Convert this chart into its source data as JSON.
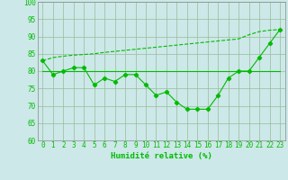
{
  "x": [
    0,
    1,
    2,
    3,
    4,
    5,
    6,
    7,
    8,
    9,
    10,
    11,
    12,
    13,
    14,
    15,
    16,
    17,
    18,
    19,
    20,
    21,
    22,
    23
  ],
  "line_main": [
    83,
    79,
    80,
    81,
    81,
    76,
    78,
    77,
    79,
    79,
    76,
    73,
    74,
    71,
    69,
    69,
    69,
    73,
    78,
    80,
    80,
    84,
    88,
    92
  ],
  "line_flat_x": [
    0,
    1,
    2,
    3,
    4,
    5,
    6,
    7,
    8,
    9,
    10,
    11,
    12,
    13,
    14,
    15,
    16,
    17,
    18,
    19,
    20,
    21,
    22,
    23
  ],
  "line_flat_y": [
    80,
    80,
    80,
    80,
    80,
    80,
    80,
    80,
    80,
    80,
    80,
    80,
    80,
    80,
    80,
    80,
    80,
    80,
    80,
    80,
    80,
    80,
    80,
    80
  ],
  "line_diag_x": [
    0,
    1,
    2,
    3,
    4,
    5,
    6,
    7,
    8,
    9,
    10,
    11,
    12,
    13,
    14,
    15,
    16,
    17,
    18,
    19,
    20,
    21,
    22,
    23
  ],
  "line_diag_y": [
    83,
    83.9,
    84.3,
    84.6,
    84.8,
    85.0,
    85.4,
    85.7,
    86.0,
    86.3,
    86.6,
    86.9,
    87.2,
    87.5,
    87.8,
    88.1,
    88.4,
    88.7,
    89.0,
    89.3,
    90.5,
    91.4,
    91.8,
    92
  ],
  "line_color": "#00bb00",
  "bg_color": "#cce8e8",
  "grid_color": "#99bb99",
  "xlabel": "Humidité relative (%)",
  "ylim": [
    60,
    100
  ],
  "xlim": [
    -0.5,
    23.5
  ],
  "yticks": [
    60,
    65,
    70,
    75,
    80,
    85,
    90,
    95,
    100
  ],
  "xticks": [
    0,
    1,
    2,
    3,
    4,
    5,
    6,
    7,
    8,
    9,
    10,
    11,
    12,
    13,
    14,
    15,
    16,
    17,
    18,
    19,
    20,
    21,
    22,
    23
  ],
  "tick_fontsize": 5.5,
  "xlabel_fontsize": 6.5
}
